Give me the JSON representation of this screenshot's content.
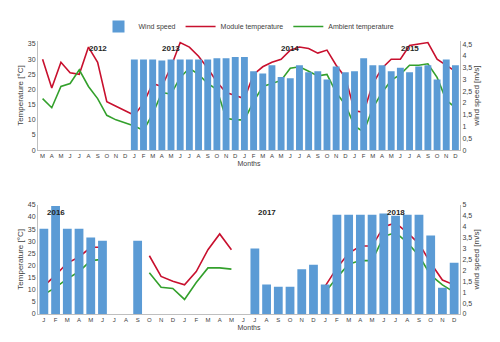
{
  "chart_data": [
    {
      "type": "bar",
      "x_label": "Months",
      "y_label": "Temperature [°C]",
      "y2_label": "wind speed [m/s]",
      "categories": [
        "M",
        "A",
        "M",
        "J",
        "J",
        "A",
        "S",
        "O",
        "N",
        "D",
        "J",
        "F",
        "M",
        "A",
        "M",
        "J",
        "J",
        "A",
        "S",
        "O",
        "N",
        "D",
        "J",
        "F",
        "M",
        "A",
        "M",
        "J",
        "J",
        "A",
        "S",
        "O",
        "N",
        "D",
        "J",
        "F",
        "M",
        "A",
        "M",
        "J",
        "J",
        "A",
        "S",
        "O",
        "N",
        "D"
      ],
      "series": [
        {
          "name": "Wind speed",
          "type": "bar",
          "axis": "y2",
          "color": "#5b9bd5",
          "values": [
            null,
            null,
            null,
            null,
            null,
            null,
            null,
            null,
            null,
            null,
            3.85,
            3.85,
            3.85,
            3.8,
            3.85,
            3.85,
            3.85,
            3.85,
            3.85,
            3.9,
            3.9,
            3.95,
            3.95,
            3.35,
            3.25,
            3.6,
            3.1,
            3.05,
            3.6,
            3.3,
            3.35,
            3.0,
            3.55,
            3.3,
            3.35,
            3.9,
            3.6,
            3.6,
            3.35,
            3.5,
            3.3,
            3.55,
            3.6,
            3.0,
            3.85,
            3.6
          ]
        },
        {
          "name": "Module temperature",
          "type": "line",
          "color": "#c8102e",
          "values": [
            30,
            20.5,
            29,
            25.5,
            25,
            34,
            29,
            16,
            14.5,
            13,
            11.5,
            15.5,
            22,
            21,
            27.5,
            35.5,
            34,
            31,
            27,
            22.5,
            19,
            18,
            17,
            25,
            27.5,
            29,
            30,
            33,
            34,
            33.5,
            32,
            33,
            28,
            24,
            13,
            12.5,
            22,
            27,
            30,
            30,
            34.5,
            35,
            35.5,
            30,
            28,
            26
          ]
        },
        {
          "name": "Ambient temperature",
          "type": "line",
          "color": "#33a02c",
          "values": [
            17,
            14,
            21,
            22,
            26.5,
            21,
            17,
            11.5,
            10,
            9,
            8,
            6.5,
            12,
            19,
            18.5,
            24,
            27,
            25,
            22,
            20,
            10.5,
            10,
            10,
            16,
            21,
            22,
            23,
            27,
            27.5,
            26,
            24.5,
            25,
            19,
            15,
            8,
            6,
            14,
            19,
            23,
            25,
            28,
            28,
            28.5,
            24,
            16.5,
            14
          ]
        }
      ],
      "ylim": [
        0,
        36
      ],
      "yticks": [
        0,
        5,
        10,
        15,
        20,
        25,
        30,
        35
      ],
      "y2lim": [
        0,
        4.63
      ],
      "y2ticks": [
        0,
        {
          "value": 0.5,
          "label": "0,5"
        },
        1,
        {
          "value": 1.5,
          "label": "1,5"
        },
        2,
        {
          "value": 2.5,
          "label": "2,5"
        },
        3,
        {
          "value": 3.5,
          "label": "3,5"
        },
        4,
        {
          "value": 4.5,
          "label": "4,5"
        }
      ],
      "annotations": [
        {
          "text": "2012",
          "x": 6
        },
        {
          "text": "2013",
          "x": 14
        },
        {
          "text": "2014",
          "x": 27
        },
        {
          "text": "2015",
          "x": 40
        }
      ],
      "legend": "top",
      "grid": false
    },
    {
      "type": "bar",
      "x_label": "Months",
      "y_label": "Temperature [°C]",
      "y2_label": "wind speed [m/s]",
      "categories": [
        "J",
        "F",
        "M",
        "A",
        "M",
        "J",
        "J",
        "A",
        "S",
        "O",
        "N",
        "D",
        "J",
        "F",
        "M",
        "A",
        "M",
        "J",
        "J",
        "A",
        "S",
        "O",
        "N",
        "D",
        "J",
        "F",
        "M",
        "A",
        "M",
        "J",
        "J",
        "A",
        "S",
        "O",
        "N",
        "D"
      ],
      "series": [
        {
          "name": "Wind speed",
          "type": "bar",
          "axis": "y2",
          "color": "#5b9bd5",
          "values": [
            3.9,
            4.95,
            3.9,
            3.9,
            3.5,
            3.35,
            null,
            null,
            3.35,
            null,
            null,
            null,
            null,
            null,
            null,
            null,
            null,
            null,
            3.0,
            1.35,
            1.25,
            1.25,
            2.05,
            2.25,
            1.35,
            4.55,
            4.55,
            4.55,
            4.55,
            4.6,
            4.5,
            4.55,
            4.55,
            3.6,
            1.2,
            2.35
          ]
        },
        {
          "name": "Module temperature",
          "type": "line",
          "color": "#c8102e",
          "values": [
            11.5,
            16,
            21,
            23.5,
            27.5,
            27.5,
            null,
            null,
            null,
            24,
            15.5,
            13.5,
            12,
            17.5,
            26.5,
            33,
            26.5,
            null,
            null,
            null,
            null,
            null,
            null,
            null,
            11.5,
            19,
            25,
            28,
            28,
            36,
            37.5,
            33.5,
            29,
            21,
            14,
            12
          ]
        },
        {
          "name": "Ambient temperature",
          "type": "line",
          "color": "#33a02c",
          "values": [
            8,
            11,
            14.5,
            17.5,
            22,
            22.5,
            null,
            null,
            null,
            17,
            11,
            10.5,
            6,
            13,
            19,
            19,
            18.5,
            null,
            null,
            null,
            null,
            null,
            null,
            null,
            9,
            15,
            20.5,
            22,
            22,
            32,
            33.5,
            29.5,
            24,
            16,
            12,
            9
          ]
        }
      ],
      "ylim": [
        0,
        45
      ],
      "yticks": [
        0,
        5,
        10,
        15,
        20,
        25,
        30,
        35,
        40,
        45
      ],
      "y2lim": [
        0,
        5
      ],
      "y2ticks": [
        0,
        {
          "value": 0.5,
          "label": "0,5"
        },
        1,
        {
          "value": 1.5,
          "label": "1,5"
        },
        2,
        {
          "value": 2.5,
          "label": "2,5"
        },
        3,
        {
          "value": 3.5,
          "label": "3,5"
        },
        4,
        {
          "value": 4.5,
          "label": "4,5"
        },
        5
      ],
      "annotations": [
        {
          "text": "2016",
          "x": 1
        },
        {
          "text": "2017",
          "x": 19
        },
        {
          "text": "2018",
          "x": 30
        }
      ],
      "legend": false,
      "grid": false
    }
  ]
}
